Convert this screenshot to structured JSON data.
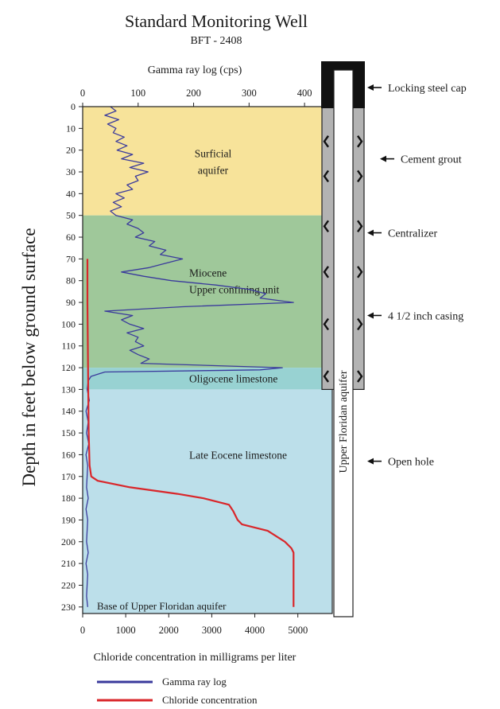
{
  "chart_data": {
    "type": "line",
    "title": "Standard Monitoring Well",
    "subtitle": "BFT - 2408",
    "ylabel": "Depth in feet below ground surface",
    "x_top_label": "Gamma ray log  (cps)",
    "x_bottom_label": "Chloride concentration in milligrams per liter",
    "y_ticks": [
      0,
      10,
      20,
      30,
      40,
      50,
      60,
      70,
      80,
      90,
      100,
      110,
      120,
      130,
      140,
      150,
      160,
      170,
      180,
      190,
      200,
      210,
      220,
      230
    ],
    "ylim": [
      0,
      233
    ],
    "gamma_xlim": [
      0,
      450
    ],
    "gamma_ticks": [
      0,
      100,
      200,
      300,
      400
    ],
    "chloride_xlim": [
      0,
      5800
    ],
    "chloride_ticks": [
      0,
      1000,
      2000,
      3000,
      4000,
      5000
    ],
    "zones": [
      {
        "label_lines": [
          "Surficial",
          "aquifer"
        ],
        "top": 0,
        "bottom": 50,
        "color": "#f7e39a"
      },
      {
        "label_lines": [
          "Miocene",
          "Upper confining unit"
        ],
        "top": 50,
        "bottom": 120,
        "color": "#9fc89a"
      },
      {
        "label_lines": [
          "Oligocene  limestone"
        ],
        "top": 120,
        "bottom": 130,
        "color": "#98d2d2"
      },
      {
        "label_lines": [
          "Late Eocene  limestone"
        ],
        "top": 130,
        "bottom": 233,
        "color": "#bcdfea"
      }
    ],
    "base_label": "Base of Upper Floridan aquifer",
    "series": [
      {
        "name": "Gamma ray log",
        "color": "#3a3a9c",
        "axis": "gamma",
        "depth": [
          0,
          2,
          4,
          6,
          8,
          10,
          12,
          14,
          16,
          18,
          20,
          22,
          24,
          26,
          28,
          30,
          32,
          34,
          36,
          38,
          40,
          42,
          44,
          46,
          48,
          50,
          52,
          54,
          56,
          58,
          60,
          62,
          64,
          66,
          68,
          70,
          72,
          74,
          76,
          78,
          80,
          82,
          84,
          86,
          88,
          90,
          92,
          94,
          96,
          98,
          100,
          102,
          104,
          106,
          108,
          110,
          112,
          114,
          116,
          118,
          120,
          121,
          122,
          124,
          126,
          130,
          135,
          140,
          145,
          150,
          155,
          160,
          165,
          170,
          175,
          180,
          185,
          190,
          195,
          200,
          205,
          210,
          215,
          220,
          225,
          230
        ],
        "values": [
          50,
          60,
          40,
          65,
          45,
          60,
          55,
          75,
          60,
          80,
          62,
          90,
          70,
          110,
          85,
          118,
          95,
          100,
          80,
          90,
          60,
          75,
          55,
          70,
          50,
          60,
          90,
          80,
          100,
          110,
          95,
          130,
          120,
          150,
          140,
          180,
          150,
          120,
          70,
          110,
          160,
          240,
          300,
          330,
          320,
          380,
          180,
          40,
          90,
          70,
          85,
          110,
          80,
          100,
          95,
          110,
          85,
          100,
          120,
          105,
          360,
          320,
          40,
          15,
          10,
          8,
          12,
          6,
          10,
          7,
          11,
          6,
          9,
          8,
          7,
          10,
          6,
          9,
          8,
          7,
          10,
          6,
          9,
          8,
          7,
          9
        ]
      },
      {
        "name": "Chloride concentration",
        "color": "#d9262a",
        "axis": "chloride",
        "depth": [
          70,
          90,
          110,
          130,
          150,
          165,
          170,
          172,
          175,
          178,
          180,
          183,
          186,
          188,
          190,
          192,
          195,
          200,
          203,
          205,
          210,
          230
        ],
        "values": [
          110,
          110,
          120,
          130,
          140,
          160,
          200,
          350,
          1100,
          2200,
          2800,
          3400,
          3500,
          3550,
          3600,
          3700,
          4300,
          4700,
          4850,
          4900,
          4900,
          4900
        ]
      }
    ],
    "legend": {
      "placement": "bottom-left"
    }
  },
  "well": {
    "aquifer_label": "Upper  Floridan  aquifer",
    "callouts": [
      {
        "label": "Locking steel cap",
        "depth": -13
      },
      {
        "label": "Cement grout",
        "depth": 24
      },
      {
        "label": "Centralizer",
        "depth": 58
      },
      {
        "label": "4 1/2  inch casing",
        "depth": 96
      },
      {
        "label": "Open hole",
        "depth": 163
      }
    ],
    "centralizer_depths": [
      16,
      32,
      55,
      76,
      100,
      124
    ],
    "casing_bottom": 130
  }
}
